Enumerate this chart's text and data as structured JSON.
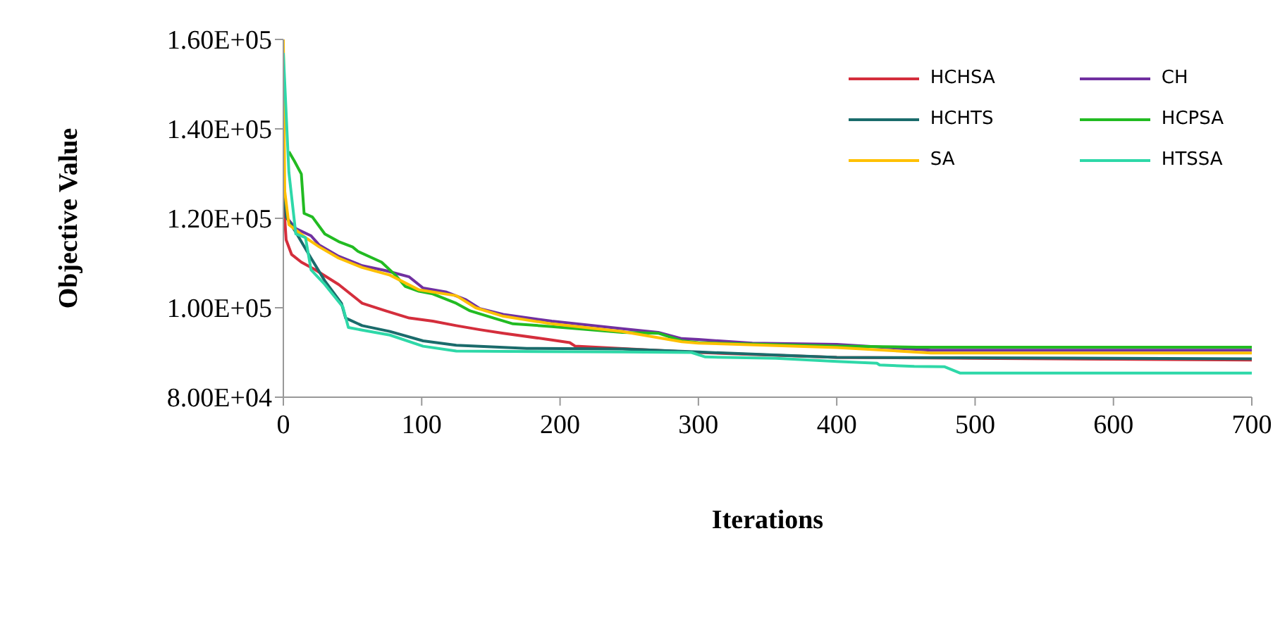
{
  "chart_data": {
    "type": "line",
    "xlabel": "Iterations",
    "ylabel": "Objective Value",
    "xlim": [
      0,
      700
    ],
    "xticks": [
      0,
      100,
      200,
      300,
      400,
      500,
      600,
      700
    ],
    "ylim": [
      80000,
      160000
    ],
    "yticks": [
      {
        "value": 80000,
        "label": "8.00E+04"
      },
      {
        "value": 100000,
        "label": "1.00E+05"
      },
      {
        "value": 120000,
        "label": "1.20E+05"
      },
      {
        "value": 140000,
        "label": "1.40E+05"
      },
      {
        "value": 160000,
        "label": "1.60E+05"
      }
    ],
    "grid": false,
    "legend": "top right",
    "line_style": "solid",
    "series": [
      {
        "name": "HCHSA",
        "color": "#d42e3c",
        "x": [
          0,
          2,
          6,
          13,
          23,
          40,
          57,
          74,
          91,
          108,
          125,
          142,
          159,
          194,
          207,
          211,
          300,
          400,
          700
        ],
        "values": [
          125000,
          115200,
          111900,
          110200,
          108500,
          105200,
          101000,
          99300,
          97700,
          97000,
          96000,
          95100,
          94300,
          92800,
          92200,
          91400,
          90000,
          88900,
          88300
        ]
      },
      {
        "name": "CH",
        "color": "#7030a0",
        "x": [
          2,
          9,
          20,
          26,
          40,
          57,
          74,
          91,
          101,
          118,
          132,
          142,
          159,
          194,
          245,
          271,
          288,
          300,
          339,
          400,
          468,
          700
        ],
        "values": [
          120300,
          117700,
          116100,
          114000,
          111500,
          109400,
          108300,
          106900,
          104400,
          103500,
          101800,
          99800,
          98500,
          97000,
          95300,
          94500,
          93100,
          92900,
          92100,
          91800,
          90500,
          90500
        ]
      },
      {
        "name": "HCHTS",
        "color": "#1a6b6b",
        "x": [
          0,
          2,
          9,
          20,
          30,
          42,
          45,
          57,
          77,
          101,
          125,
          176,
          245,
          300,
          400,
          700
        ],
        "values": [
          130000,
          120300,
          116900,
          111100,
          106000,
          101000,
          97700,
          96000,
          94700,
          92600,
          91600,
          90900,
          90800,
          90100,
          88900,
          88600
        ]
      },
      {
        "name": "HCPSA",
        "color": "#22bb22",
        "x": [
          4,
          8,
          13,
          15,
          21,
          30,
          40,
          50,
          54,
          71,
          81,
          88,
          98,
          108,
          125,
          135,
          152,
          166,
          194,
          245,
          271,
          288,
          300,
          400,
          458,
          700
        ],
        "values": [
          134900,
          132800,
          129900,
          121100,
          120300,
          116500,
          114800,
          113600,
          112600,
          110200,
          107300,
          104800,
          103700,
          103100,
          101000,
          99300,
          97700,
          96400,
          95800,
          94500,
          94300,
          92600,
          92200,
          91400,
          91200,
          91200
        ]
      },
      {
        "name": "SA",
        "color": "#ffc000",
        "x": [
          0,
          1,
          4,
          16,
          26,
          40,
          57,
          77,
          98,
          125,
          139,
          159,
          194,
          245,
          288,
          300,
          400,
          468,
          700
        ],
        "values": [
          160000,
          126100,
          118600,
          115700,
          113600,
          111100,
          109000,
          107300,
          104000,
          102700,
          100000,
          98100,
          96400,
          94700,
          92400,
          92100,
          91100,
          89900,
          89900
        ]
      },
      {
        "name": "HTSSA",
        "color": "#2ed8a8",
        "x": [
          0,
          4,
          9,
          16,
          20,
          30,
          43,
          47,
          57,
          77,
          101,
          125,
          245,
          295,
          305,
          356,
          400,
          429,
          431,
          456,
          478,
          489,
          700
        ],
        "values": [
          157000,
          130300,
          116500,
          115700,
          108500,
          105200,
          100200,
          95600,
          95000,
          93900,
          91400,
          90300,
          90100,
          90000,
          89000,
          88700,
          88000,
          87600,
          87200,
          86900,
          86800,
          85400,
          85400
        ]
      }
    ]
  }
}
